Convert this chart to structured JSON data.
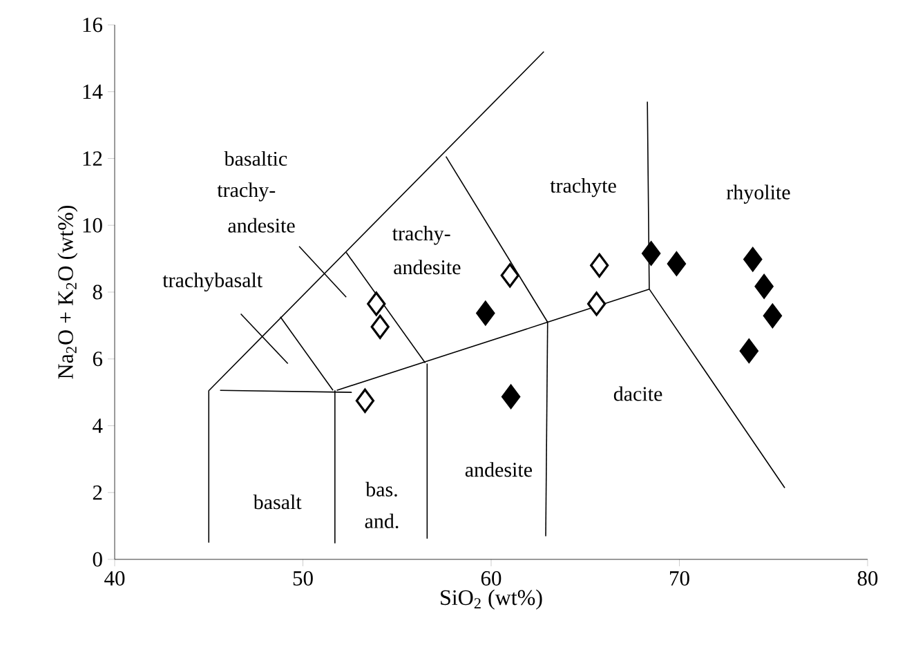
{
  "chart_data": {
    "type": "scatter",
    "xlabel": "SiO$_{2}$ (wt%)",
    "ylabel": "Na$_{2}$O + K$_{2}$O (wt%)",
    "xlim": [
      40,
      80
    ],
    "ylim": [
      0,
      16
    ],
    "xticks": [
      40,
      50,
      60,
      70,
      80
    ],
    "yticks": [
      0,
      2,
      4,
      6,
      8,
      10,
      12,
      14,
      16
    ],
    "grid": false,
    "series": [
      {
        "type": "line",
        "marker": "none",
        "color": "#000000",
        "x": [
          45,
          45,
          62.8
        ],
        "values": [
          0.5,
          5.05,
          15.2
        ]
      },
      {
        "type": "line",
        "marker": "none",
        "color": "#000000",
        "x": [
          45.6,
          52.6
        ],
        "values": [
          5.06,
          5.0
        ]
      },
      {
        "type": "line",
        "marker": "none",
        "color": "#000000",
        "x": [
          51.7,
          51.7
        ],
        "values": [
          5.06,
          0.48
        ]
      },
      {
        "type": "line",
        "marker": "none",
        "color": "#000000",
        "x": [
          48.8,
          51.6
        ],
        "values": [
          7.26,
          5.06
        ]
      },
      {
        "type": "line",
        "marker": "none",
        "color": "#000000",
        "x": [
          52.3,
          56.5
        ],
        "values": [
          9.19,
          5.88
        ]
      },
      {
        "type": "line",
        "marker": "none",
        "color": "#000000",
        "x": [
          57.6,
          63.0
        ],
        "values": [
          12.06,
          7.1
        ]
      },
      {
        "type": "line",
        "marker": "none",
        "color": "#000000",
        "x": [
          56.6,
          56.6
        ],
        "values": [
          5.86,
          0.62
        ]
      },
      {
        "type": "line",
        "marker": "none",
        "color": "#000000",
        "x": [
          63.0,
          62.9
        ],
        "values": [
          7.1,
          0.69
        ]
      },
      {
        "type": "line",
        "marker": "none",
        "color": "#000000",
        "x": [
          51.8,
          63.0,
          68.4
        ],
        "values": [
          5.06,
          7.1,
          8.09
        ]
      },
      {
        "type": "line",
        "marker": "none",
        "color": "#000000",
        "x": [
          68.3,
          68.4,
          75.6
        ],
        "values": [
          13.7,
          8.09,
          2.14
        ]
      },
      {
        "type": "line",
        "marker": "none",
        "color": "#000000",
        "x": [
          46.7,
          49.2
        ],
        "values": [
          7.35,
          5.86
        ]
      },
      {
        "type": "line",
        "marker": "none",
        "color": "#000000",
        "x": [
          49.8,
          52.3
        ],
        "values": [
          9.37,
          7.85
        ]
      },
      {
        "marker": "diamond",
        "color": "#ffffff",
        "x": [
          53.9,
          54.1,
          53.3,
          61.0,
          65.75,
          65.6
        ],
        "values": [
          7.65,
          6.96,
          4.75,
          8.5,
          8.8,
          7.65
        ]
      },
      {
        "marker": "diamond",
        "color": "#000000",
        "x": [
          59.7,
          61.05,
          68.5,
          69.85,
          73.9,
          74.5,
          74.95,
          73.7
        ],
        "values": [
          7.37,
          4.87,
          9.16,
          8.85,
          8.98,
          8.17,
          7.29,
          6.24
        ]
      }
    ],
    "annotations": [
      "trachybasalt",
      "basaltic",
      "trachy-",
      "andesite",
      "trachy-",
      "andesite",
      "basalt",
      "bas.",
      "and.",
      "andesite",
      "trachyte",
      "rhyolite",
      "dacite"
    ]
  }
}
